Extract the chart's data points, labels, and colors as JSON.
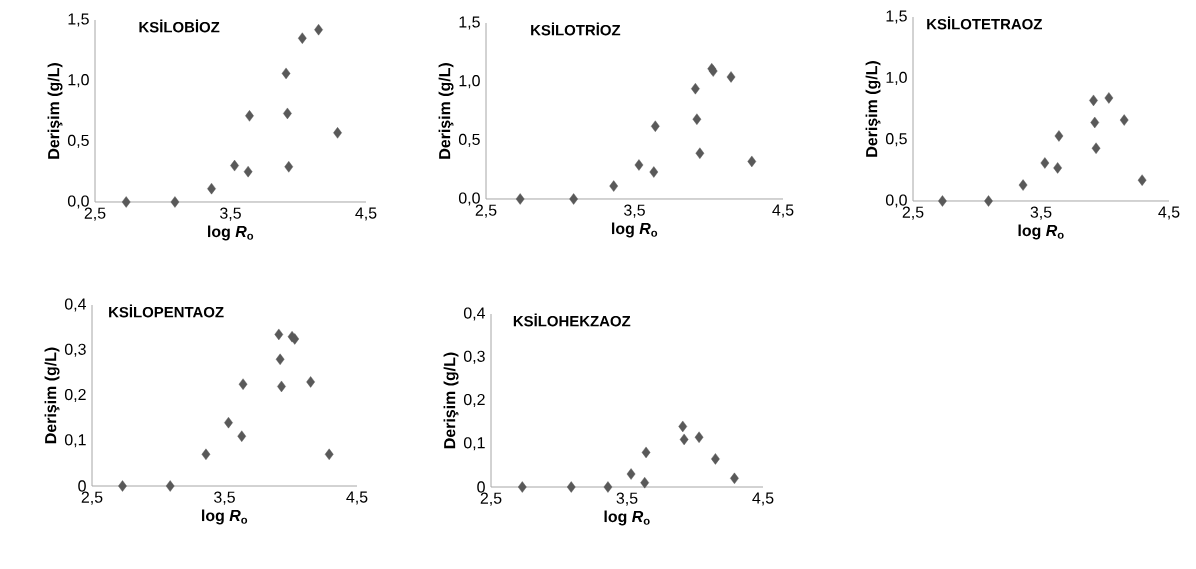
{
  "chart_data": [
    {
      "type": "scatter",
      "title": "KSİLOBİOZ",
      "xlabel": "log *R*$_{o}$",
      "ylabel": "Derişim (g/L)",
      "marker": "diamond",
      "xlim": [
        2.5,
        4.5
      ],
      "ylim": [
        0,
        1.5
      ],
      "xticks": [
        {
          "value": 2.5,
          "label": "2,5"
        },
        {
          "value": 3.5,
          "label": "3,5"
        },
        {
          "value": 4.5,
          "label": "4,5"
        }
      ],
      "yticks": [
        {
          "value": 0,
          "label": "0,0"
        },
        {
          "value": 0.5,
          "label": "0,5"
        },
        {
          "value": 1.0,
          "label": "1,0"
        },
        {
          "value": 1.5,
          "label": "1,5"
        }
      ],
      "series": [
        {
          "color": "#595959",
          "x": [
            2.73,
            3.09,
            3.36,
            3.53,
            3.63,
            3.64,
            3.91,
            3.92,
            3.93,
            4.03,
            4.15,
            4.29
          ],
          "values": [
            0,
            0,
            0.11,
            0.3,
            0.25,
            0.71,
            1.06,
            0.73,
            0.29,
            1.35,
            1.42,
            0.57
          ]
        }
      ]
    },
    {
      "type": "scatter",
      "title": "KSİLOTRİOZ",
      "xlabel": "log *R*$_{o}$",
      "ylabel": "Derişim (g/L)",
      "marker": "diamond",
      "xlim": [
        2.5,
        4.5
      ],
      "ylim": [
        0,
        1.5
      ],
      "xticks": [
        {
          "value": 2.5,
          "label": "2,5"
        },
        {
          "value": 3.5,
          "label": "3,5"
        },
        {
          "value": 4.5,
          "label": "4,5"
        }
      ],
      "yticks": [
        {
          "value": 0,
          "label": "0,0"
        },
        {
          "value": 0.5,
          "label": "0,5"
        },
        {
          "value": 1.0,
          "label": "1,0"
        },
        {
          "value": 1.5,
          "label": "1,5"
        }
      ],
      "series": [
        {
          "color": "#595959",
          "x": [
            2.73,
            3.09,
            3.36,
            3.53,
            3.63,
            3.64,
            3.91,
            3.92,
            3.94,
            4.02,
            4.03,
            4.15,
            4.29
          ],
          "values": [
            0,
            0,
            0.11,
            0.29,
            0.23,
            0.62,
            0.94,
            0.68,
            0.39,
            1.11,
            1.09,
            1.04,
            0.32
          ]
        }
      ]
    },
    {
      "type": "scatter",
      "title": "KSİLOTETRAOZ",
      "xlabel": "log *R*$_{o}$",
      "ylabel": "Derişim (g/L)",
      "marker": "diamond",
      "xlim": [
        2.5,
        4.5
      ],
      "ylim": [
        0,
        1.5
      ],
      "xticks": [
        {
          "value": 2.5,
          "label": "2,5"
        },
        {
          "value": 3.5,
          "label": "3,5"
        },
        {
          "value": 4.5,
          "label": "4,5"
        }
      ],
      "yticks": [
        {
          "value": 0,
          "label": "0,0"
        },
        {
          "value": 0.5,
          "label": "0,5"
        },
        {
          "value": 1.0,
          "label": "1,0"
        },
        {
          "value": 1.5,
          "label": "1,5"
        }
      ],
      "series": [
        {
          "color": "#595959",
          "x": [
            2.73,
            3.09,
            3.36,
            3.53,
            3.63,
            3.64,
            3.91,
            3.92,
            3.93,
            4.03,
            4.15,
            4.29
          ],
          "values": [
            0,
            0,
            0.13,
            0.31,
            0.27,
            0.53,
            0.82,
            0.64,
            0.43,
            0.84,
            0.66,
            0.17
          ]
        }
      ]
    },
    {
      "type": "scatter",
      "title": "KSİLOPENTAOZ",
      "xlabel": "log *R*$_{o}$",
      "ylabel": "Derişim (g/L)",
      "marker": "diamond",
      "xlim": [
        2.5,
        4.5
      ],
      "ylim": [
        0,
        0.4
      ],
      "xticks": [
        {
          "value": 2.5,
          "label": "2,5"
        },
        {
          "value": 3.5,
          "label": "3,5"
        },
        {
          "value": 4.5,
          "label": "4,5"
        }
      ],
      "yticks": [
        0,
        {
          "value": 0.1,
          "label": "0,1"
        },
        {
          "value": 0.2,
          "label": "0,2"
        },
        {
          "value": 0.3,
          "label": "0,3"
        },
        {
          "value": 0.4,
          "label": "0,4"
        }
      ],
      "series": [
        {
          "color": "#595959",
          "x": [
            2.73,
            3.09,
            3.36,
            3.53,
            3.63,
            3.64,
            3.91,
            3.92,
            3.93,
            4.01,
            4.03,
            4.15,
            4.29
          ],
          "values": [
            0,
            0,
            0.07,
            0.14,
            0.11,
            0.225,
            0.335,
            0.28,
            0.22,
            0.33,
            0.325,
            0.23,
            0.07
          ]
        }
      ]
    },
    {
      "type": "scatter",
      "title": "KSİLOHEKZAOZ",
      "xlabel": "log *R*$_{o}$",
      "ylabel": "Derişim (g/L)",
      "marker": "diamond",
      "xlim": [
        2.5,
        4.5
      ],
      "ylim": [
        0,
        0.4
      ],
      "xticks": [
        {
          "value": 2.5,
          "label": "2,5"
        },
        {
          "value": 3.5,
          "label": "3,5"
        },
        {
          "value": 4.5,
          "label": "4,5"
        }
      ],
      "yticks": [
        0,
        {
          "value": 0.1,
          "label": "0,1"
        },
        {
          "value": 0.2,
          "label": "0,2"
        },
        {
          "value": 0.3,
          "label": "0,3"
        },
        {
          "value": 0.4,
          "label": "0,4"
        }
      ],
      "series": [
        {
          "color": "#595959",
          "x": [
            2.73,
            3.09,
            3.36,
            3.53,
            3.63,
            3.64,
            3.91,
            3.92,
            4.03,
            4.15,
            4.29
          ],
          "values": [
            0,
            0,
            0,
            0.03,
            0.01,
            0.08,
            0.14,
            0.11,
            0.115,
            0.065,
            0.02
          ]
        }
      ]
    }
  ]
}
